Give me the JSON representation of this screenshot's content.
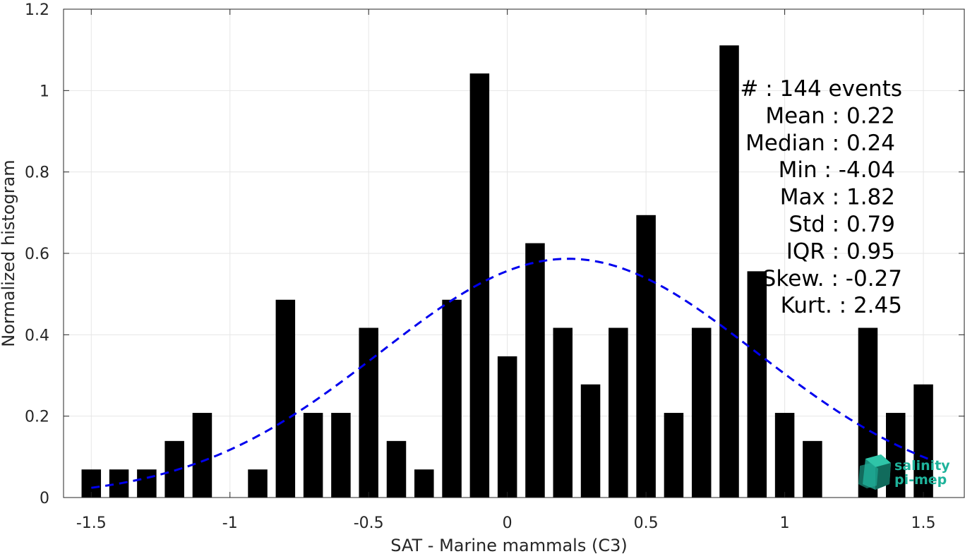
{
  "chart_data": {
    "type": "bar",
    "title": "",
    "xlabel": "SAT - Marine mammals (C3)",
    "ylabel": "Normalized histogram",
    "xlim": [
      -1.6,
      1.65
    ],
    "ylim": [
      0,
      1.2
    ],
    "xticks": [
      "-1.5",
      "-1",
      "-0.5",
      "0",
      "0.5",
      "1",
      "1.5"
    ],
    "xtick_values": [
      -1.5,
      -1,
      -0.5,
      0,
      0.5,
      1,
      1.5
    ],
    "yticks": [
      "0",
      "0.2",
      "0.4",
      "0.6",
      "0.8",
      "1",
      "1.2"
    ],
    "ytick_values": [
      0,
      0.2,
      0.4,
      0.6,
      0.8,
      1,
      1.2
    ],
    "grid": true,
    "bar_width": 0.07,
    "bar_color": "#000000",
    "bars": [
      {
        "x": -1.5,
        "y": 0.069
      },
      {
        "x": -1.4,
        "y": 0.069
      },
      {
        "x": -1.3,
        "y": 0.069
      },
      {
        "x": -1.2,
        "y": 0.139
      },
      {
        "x": -1.1,
        "y": 0.208
      },
      {
        "x": -0.9,
        "y": 0.069
      },
      {
        "x": -0.8,
        "y": 0.486
      },
      {
        "x": -0.7,
        "y": 0.208
      },
      {
        "x": -0.6,
        "y": 0.208
      },
      {
        "x": -0.5,
        "y": 0.417
      },
      {
        "x": -0.4,
        "y": 0.139
      },
      {
        "x": -0.3,
        "y": 0.069
      },
      {
        "x": -0.2,
        "y": 0.486
      },
      {
        "x": -0.1,
        "y": 1.042
      },
      {
        "x": 0.0,
        "y": 0.347
      },
      {
        "x": 0.1,
        "y": 0.625
      },
      {
        "x": 0.2,
        "y": 0.417
      },
      {
        "x": 0.3,
        "y": 0.278
      },
      {
        "x": 0.4,
        "y": 0.417
      },
      {
        "x": 0.5,
        "y": 0.694
      },
      {
        "x": 0.6,
        "y": 0.208
      },
      {
        "x": 0.7,
        "y": 0.417
      },
      {
        "x": 0.8,
        "y": 1.111
      },
      {
        "x": 0.9,
        "y": 0.556
      },
      {
        "x": 1.0,
        "y": 0.208
      },
      {
        "x": 1.1,
        "y": 0.139
      },
      {
        "x": 1.3,
        "y": 0.417
      },
      {
        "x": 1.4,
        "y": 0.208
      },
      {
        "x": 1.5,
        "y": 0.278
      }
    ],
    "fit_curve": {
      "type": "gaussian",
      "mean": 0.22,
      "std": 0.68,
      "x_range": [
        -1.5,
        1.52
      ],
      "color": "#0000ee",
      "style": "dashed"
    },
    "annotations": [
      {
        "label": "#",
        "value": ": 144 events"
      },
      {
        "label": "Mean",
        "value": ": 0.22"
      },
      {
        "label": "Median",
        "value": ": 0.24"
      },
      {
        "label": "Min",
        "value": ": -4.04"
      },
      {
        "label": "Max",
        "value": ": 1.82"
      },
      {
        "label": "Std",
        "value": ": 0.79"
      },
      {
        "label": "IQR",
        "value": ": 0.95"
      },
      {
        "label": "Skew.",
        "value": ": -0.27"
      },
      {
        "label": "Kurt.",
        "value": ": 2.45"
      }
    ]
  },
  "logo": {
    "line1": "salinity",
    "line2": "pi-mep",
    "color": "#1fb39b"
  }
}
